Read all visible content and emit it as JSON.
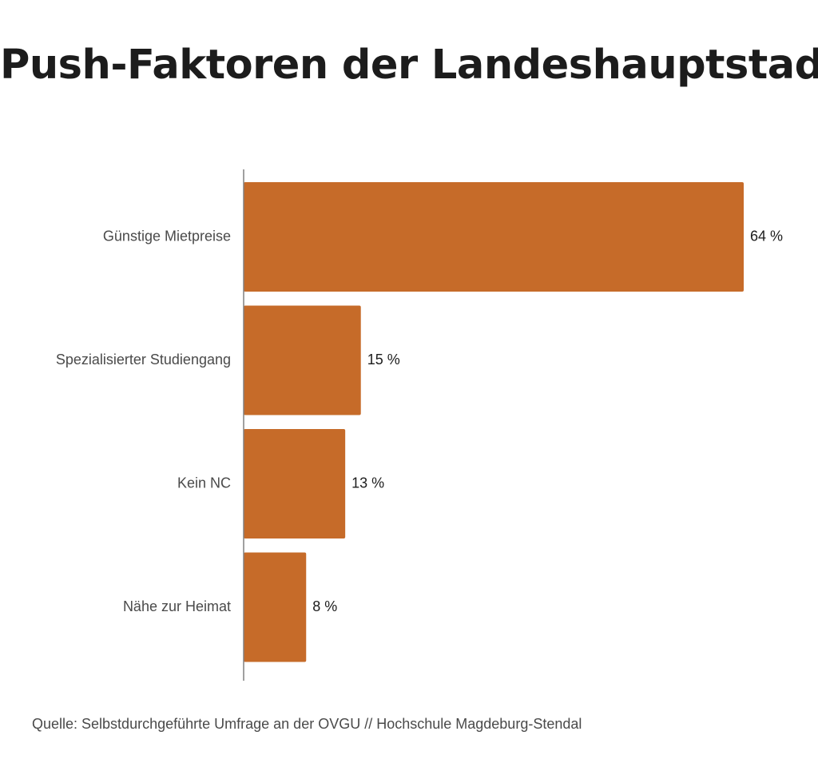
{
  "chart_data": {
    "type": "bar",
    "orientation": "horizontal",
    "title": "Push-Faktoren der Landeshauptstadt",
    "categories": [
      "Günstige Mietpreise",
      "Spezialisierter Studiengang",
      "Kein NC",
      "Nähe zur Heimat"
    ],
    "values": [
      64,
      15,
      13,
      8
    ],
    "value_labels": [
      "64 %",
      "15 %",
      "13 %",
      "8 %"
    ],
    "xlim": [
      0,
      64
    ],
    "xlabel": "",
    "ylabel": "",
    "grid": false,
    "bar_color": "#c66b29",
    "axis_color": "#808080"
  },
  "source": "Quelle: Selbstdurchgeführte Umfrage an der OVGU // Hochschule Magdeburg-Stendal"
}
